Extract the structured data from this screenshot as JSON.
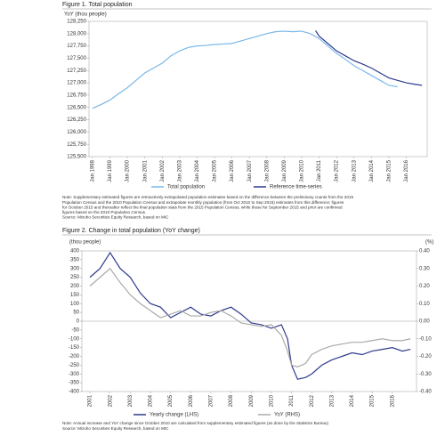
{
  "chart_data": [
    {
      "type": "line",
      "title": "Figure 1. Total population",
      "y_label": "YoY (thou people)",
      "xlim": [
        1997.8,
        2017.2
      ],
      "xticks": [
        {
          "value": 1998,
          "label": "Jan 1998"
        },
        {
          "value": 1999,
          "label": "Jan 1999"
        },
        {
          "value": 2000,
          "label": "Jan 2000"
        },
        {
          "value": 2001,
          "label": "Jan 2001"
        },
        {
          "value": 2002,
          "label": "Jan 2002"
        },
        {
          "value": 2003,
          "label": "Jan 2003"
        },
        {
          "value": 2004,
          "label": "Jan 2004"
        },
        {
          "value": 2005,
          "label": "Jan 2005"
        },
        {
          "value": 2006,
          "label": "Jan 2006"
        },
        {
          "value": 2007,
          "label": "Jan 2007"
        },
        {
          "value": 2008,
          "label": "Jan 2008"
        },
        {
          "value": 2009,
          "label": "Jan 2009"
        },
        {
          "value": 2010,
          "label": "Jan 2010"
        },
        {
          "value": 2011,
          "label": "Jan 2011"
        },
        {
          "value": 2012,
          "label": "Jan 2012"
        },
        {
          "value": 2013,
          "label": "Jan 2013"
        },
        {
          "value": 2014,
          "label": "Jan 2014"
        },
        {
          "value": 2015,
          "label": "Jan 2015"
        },
        {
          "value": 2016,
          "label": "Jan 2016"
        }
      ],
      "ylim": [
        125500,
        128250
      ],
      "yticks": [
        {
          "value": 125500,
          "label": "125,500"
        },
        {
          "value": 125750,
          "label": "125,750"
        },
        {
          "value": 126000,
          "label": "126,000"
        },
        {
          "value": 126250,
          "label": "126,250"
        },
        {
          "value": 126500,
          "label": "126,500"
        },
        {
          "value": 126750,
          "label": "126,750"
        },
        {
          "value": 127000,
          "label": "127,000"
        },
        {
          "value": 127250,
          "label": "127,250"
        },
        {
          "value": 127500,
          "label": "127,500"
        },
        {
          "value": 127750,
          "label": "127,750"
        },
        {
          "value": 128000,
          "label": "128,000"
        },
        {
          "value": 128250,
          "label": "128,250"
        }
      ],
      "series": [
        {
          "name": "Total population",
          "color": "#7ab8e8",
          "x": [
            1998,
            1998.5,
            1999,
            1999.5,
            2000,
            2000.5,
            2001,
            2001.5,
            2002,
            2002.5,
            2003,
            2003.5,
            2004,
            2004.5,
            2005,
            2005.5,
            2006,
            2006.5,
            2007,
            2007.5,
            2008,
            2008.5,
            2009,
            2009.5,
            2010,
            2010.5,
            2011,
            2011.5,
            2012,
            2012.5,
            2013,
            2013.5,
            2014,
            2014.5,
            2015,
            2015.5
          ],
          "values": [
            126480,
            126560,
            126650,
            126780,
            126900,
            127050,
            127200,
            127300,
            127400,
            127550,
            127650,
            127720,
            127750,
            127760,
            127780,
            127790,
            127800,
            127850,
            127900,
            127950,
            128000,
            128040,
            128050,
            128040,
            128050,
            128000,
            127900,
            127750,
            127600,
            127480,
            127350,
            127250,
            127150,
            127050,
            126950,
            126920
          ]
        },
        {
          "name": "Reference time-series",
          "color": "#2e3a8c",
          "x": [
            2010.8,
            2011,
            2011.5,
            2012,
            2012.5,
            2013,
            2013.5,
            2014,
            2014.5,
            2015,
            2015.5,
            2016,
            2016.5,
            2016.9
          ],
          "values": [
            128060,
            127950,
            127800,
            127650,
            127550,
            127450,
            127380,
            127300,
            127200,
            127100,
            127050,
            127000,
            126970,
            126950
          ]
        }
      ],
      "notes": [
        "Note: Supplementary estimated figures are retroactively extrapolated population estimates based on the difference between the preliminary counts from the 2015",
        "Population Census and the 2010 Population Census and extrapolate monthly population (from Oct 2010 to Sep 2015) estimates from this difference; figures",
        "for October 2015 and thereafter reflect the final population stats from the 2015 Population Census, while those for September 2015 and prior are confirmed",
        "figures based on the 2010 Population Census.",
        "Source: Mizuho Securities Equity Research, based on MIC"
      ]
    },
    {
      "type": "line",
      "title": "Figure 2. Change in total population (YoY change)",
      "y_label": "(thou people)",
      "y2_label": "(%)",
      "xlim": [
        2000.6,
        2017.2
      ],
      "xticks": [
        2001,
        2002,
        2003,
        2004,
        2005,
        2006,
        2007,
        2008,
        2009,
        2010,
        2011,
        2012,
        2013,
        2014,
        2015,
        2016
      ],
      "ylim": [
        -400,
        400
      ],
      "yticks": [
        -400,
        -350,
        -300,
        -250,
        -200,
        -150,
        -100,
        -50,
        0,
        50,
        100,
        150,
        200,
        250,
        300,
        350,
        400
      ],
      "y2lim": [
        -0.4,
        0.4
      ],
      "y2ticks": [
        {
          "value": -0.4,
          "label": "-0.40"
        },
        {
          "value": -0.3,
          "label": "-0.30"
        },
        {
          "value": -0.2,
          "label": "-0.20"
        },
        {
          "value": -0.1,
          "label": "-0.10"
        },
        {
          "value": 0,
          "label": "0.00"
        },
        {
          "value": 0.1,
          "label": "0.10"
        },
        {
          "value": 0.2,
          "label": "0.20"
        },
        {
          "value": 0.3,
          "label": "0.30"
        },
        {
          "value": 0.4,
          "label": "0.40"
        }
      ],
      "series": [
        {
          "name": "Yearly change (LHS)",
          "color": "#2e3a8c",
          "x": [
            2001,
            2001.5,
            2002,
            2002.5,
            2003,
            2003.5,
            2004,
            2004.5,
            2005,
            2005.5,
            2006,
            2006.5,
            2007,
            2007.5,
            2008,
            2008.5,
            2009,
            2009.5,
            2010,
            2010.5,
            2010.8,
            2011,
            2011.3,
            2011.7,
            2012,
            2012.5,
            2013,
            2013.5,
            2014,
            2014.5,
            2015,
            2015.5,
            2016,
            2016.5,
            2016.9
          ],
          "values": [
            250,
            300,
            390,
            300,
            250,
            160,
            100,
            80,
            20,
            50,
            80,
            40,
            30,
            60,
            80,
            40,
            -10,
            -20,
            -40,
            -20,
            -100,
            -250,
            -330,
            -320,
            -300,
            -250,
            -220,
            -200,
            -180,
            -190,
            -170,
            -160,
            -150,
            -170,
            -160
          ]
        },
        {
          "name": "YoY (RHS)",
          "color": "#aaaaaa",
          "axis": "y2",
          "x": [
            2001,
            2001.5,
            2002,
            2002.5,
            2003,
            2003.5,
            2004,
            2004.5,
            2005,
            2005.5,
            2006,
            2006.5,
            2007,
            2007.5,
            2008,
            2008.5,
            2009,
            2009.5,
            2010,
            2010.5,
            2010.8,
            2011,
            2011.3,
            2011.7,
            2012,
            2012.5,
            2013,
            2013.5,
            2014,
            2014.5,
            2015,
            2015.5,
            2016,
            2016.5,
            2016.9
          ],
          "values": [
            0.2,
            0.25,
            0.3,
            0.22,
            0.15,
            0.1,
            0.06,
            0.02,
            0.04,
            0.06,
            0.03,
            0.03,
            0.05,
            0.06,
            0.03,
            -0.01,
            -0.02,
            -0.03,
            -0.02,
            -0.08,
            -0.17,
            -0.25,
            -0.26,
            -0.24,
            -0.19,
            -0.16,
            -0.14,
            -0.13,
            -0.12,
            -0.12,
            -0.11,
            -0.1,
            -0.11,
            -0.11,
            -0.1
          ]
        }
      ],
      "notes": [
        "Note: Annual increase and YoY change since October 2010 are calculated from supplementary estimated figures (as done by the Statistics Bureau)",
        "Source: Mizuho Securities Equity Research, based on MIC"
      ]
    }
  ]
}
